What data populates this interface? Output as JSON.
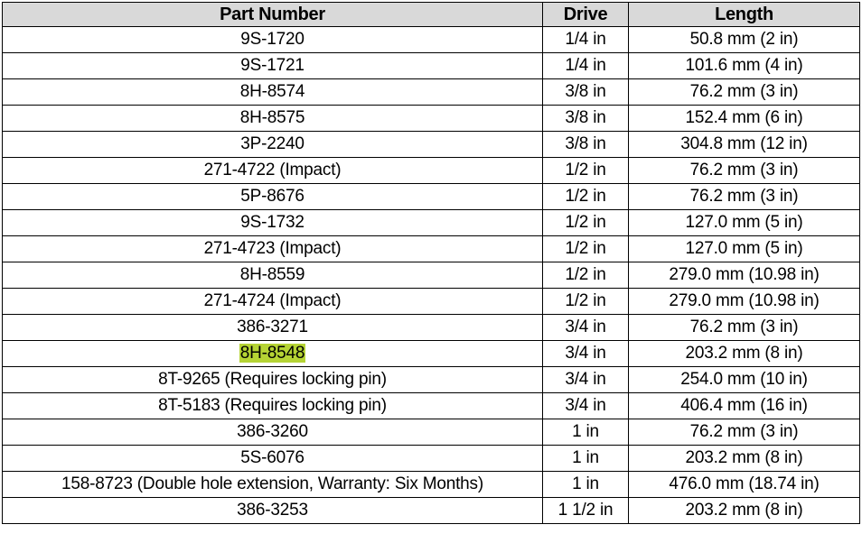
{
  "table": {
    "headers": [
      "Part Number",
      "Drive",
      "Length"
    ],
    "rows": [
      {
        "part": "9S-1720",
        "drive": "1/4 in",
        "length": "50.8 mm (2 in)"
      },
      {
        "part": "9S-1721",
        "drive": "1/4 in",
        "length": "101.6 mm (4 in)"
      },
      {
        "part": "8H-8574",
        "drive": "3/8 in",
        "length": "76.2 mm (3 in)"
      },
      {
        "part": "8H-8575",
        "drive": "3/8 in",
        "length": "152.4 mm (6 in)"
      },
      {
        "part": "3P-2240",
        "drive": "3/8 in",
        "length": "304.8 mm (12 in)"
      },
      {
        "part": "271-4722 (Impact)",
        "drive": "1/2 in",
        "length": "76.2 mm (3 in)"
      },
      {
        "part": "5P-8676",
        "drive": "1/2 in",
        "length": "76.2 mm (3 in)"
      },
      {
        "part": "9S-1732",
        "drive": "1/2 in",
        "length": "127.0 mm (5 in)"
      },
      {
        "part": "271-4723 (Impact)",
        "drive": "1/2 in",
        "length": "127.0 mm (5 in)"
      },
      {
        "part": "8H-8559",
        "drive": "1/2 in",
        "length": "279.0 mm (10.98 in)"
      },
      {
        "part": "271-4724 (Impact)",
        "drive": "1/2 in",
        "length": "279.0 mm (10.98 in)"
      },
      {
        "part": "386-3271",
        "drive": "3/4 in",
        "length": "76.2 mm (3 in)"
      },
      {
        "part": "8H-8548",
        "drive": "3/4 in",
        "length": "203.2 mm (8 in)",
        "highlighted": true
      },
      {
        "part": "8T-9265 (Requires locking pin)",
        "drive": "3/4 in",
        "length": "254.0 mm (10 in)"
      },
      {
        "part": "8T-5183 (Requires locking pin)",
        "drive": "3/4 in",
        "length": "406.4 mm (16 in)"
      },
      {
        "part": "386-3260",
        "drive": "1 in",
        "length": "76.2 mm (3 in)"
      },
      {
        "part": "5S-6076",
        "drive": "1 in",
        "length": "203.2 mm (8 in)"
      },
      {
        "part": "158-8723 (Double hole extension, Warranty: Six Months)",
        "drive": "1 in",
        "length": "476.0 mm (18.74 in)"
      },
      {
        "part": "386-3253",
        "drive": "1 1/2 in",
        "length": "203.2 mm (8 in)"
      }
    ]
  },
  "colors": {
    "highlight": "#b5d334",
    "header_background": "#d9d9d9"
  }
}
